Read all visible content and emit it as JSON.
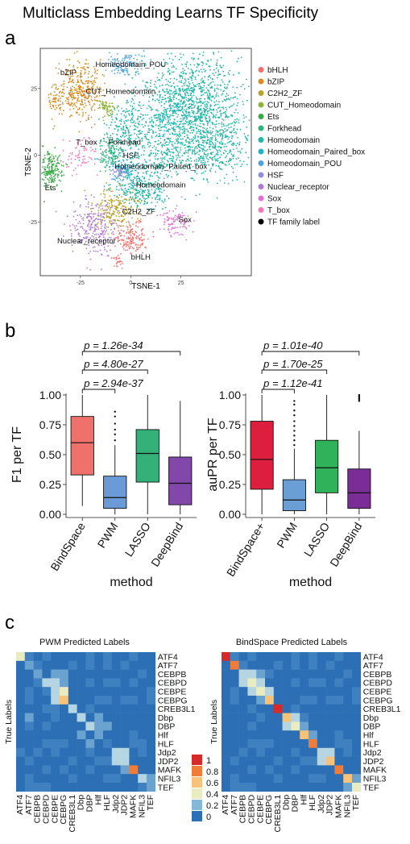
{
  "figure_title": "Multiclass Embedding Learns TF Specificity",
  "panel_letters": [
    "a",
    "b",
    "c"
  ],
  "colors": {
    "bHLH": "#f26f6b",
    "bZIP": "#d98b21",
    "C2H2_ZF": "#b8a32c",
    "CUT_Homeodomain": "#8fb43a",
    "Ets": "#3ca848",
    "Forkhead": "#2cb27a",
    "Homeodomain": "#22b6a4",
    "Homeodomain_Paired_box": "#1fb4c4",
    "Homeodomain_POU": "#4ea3dc",
    "HSF": "#8c8fd9",
    "Nuclear_receptor": "#b07ad8",
    "Sox": "#e36fd0",
    "T_box": "#f27ab8",
    "TF family label": "#000000",
    "BindSpace": "#f0716c",
    "PWM": "#6b9bd6",
    "LASSO": "#34b079",
    "DeepBind": "#8147a9",
    "BindSpace+": "#dd1f3d",
    "PWM_b": "#6a9ed4",
    "LASSO_b": "#2fb25a",
    "DeepBind_b": "#7b2d96"
  },
  "chart_data": [
    {
      "type": "scatter",
      "xlabel": "TSNE-1",
      "ylabel": "TSNE-2",
      "xticks": [
        -25,
        0,
        25
      ],
      "yticks": [
        25,
        0,
        -25
      ],
      "xlim": [
        -45,
        60
      ],
      "ylim": [
        -45,
        40
      ],
      "legend_position": "right",
      "legend": [
        "bHLH",
        "bZIP",
        "C2H2_ZF",
        "CUT_Homeodomain",
        "Ets",
        "Forkhead",
        "Homeodomain",
        "Homeodomain_Paired_box",
        "Homeodomain_POU",
        "HSF",
        "Nuclear_receptor",
        "Sox",
        "T_box",
        "TF family label"
      ],
      "clusters": [
        {
          "family": "Homeodomain",
          "x": 30,
          "y": 20,
          "sx": 13,
          "sy": 9,
          "n": 1100
        },
        {
          "family": "Homeodomain",
          "x": 40,
          "y": 3,
          "sx": 9,
          "sy": 6,
          "n": 450
        },
        {
          "family": "Homeodomain",
          "x": 0,
          "y": 10,
          "sx": 6,
          "sy": 5,
          "n": 250
        },
        {
          "family": "Homeodomain",
          "x": 6,
          "y": -14,
          "sx": 6,
          "sy": 3,
          "n": 200
        },
        {
          "family": "Homeodomain",
          "x": 15,
          "y": 0,
          "sx": 6,
          "sy": 5,
          "n": 200
        },
        {
          "family": "Homeodomain_Paired_box",
          "x": -2,
          "y": -6,
          "sx": 5,
          "sy": 4,
          "n": 200
        },
        {
          "family": "Homeodomain_Paired_box",
          "x": 20,
          "y": 14,
          "sx": 6,
          "sy": 5,
          "n": 120
        },
        {
          "family": "Homeodomain_POU",
          "x": -4,
          "y": 34,
          "sx": 4,
          "sy": 2.2,
          "n": 110
        },
        {
          "family": "bZIP",
          "x": -25,
          "y": 24,
          "sx": 5,
          "sy": 5,
          "n": 350
        },
        {
          "family": "bZIP",
          "x": -37,
          "y": 20,
          "sx": 2,
          "sy": 3,
          "n": 60
        },
        {
          "family": "CUT_Homeodomain",
          "x": -12,
          "y": 18,
          "sx": 1.8,
          "sy": 1.5,
          "n": 60
        },
        {
          "family": "Ets",
          "x": -40,
          "y": -5,
          "sx": 3.5,
          "sy": 3.5,
          "n": 200
        },
        {
          "family": "Forkhead",
          "x": -11,
          "y": 1,
          "sx": 3,
          "sy": 3,
          "n": 120
        },
        {
          "family": "T_box",
          "x": -25,
          "y": 0,
          "sx": 4,
          "sy": 3,
          "n": 70
        },
        {
          "family": "HSF",
          "x": -6,
          "y": -6,
          "sx": 2,
          "sy": 1.6,
          "n": 50
        },
        {
          "family": "C2H2_ZF",
          "x": -7,
          "y": -20,
          "sx": 6,
          "sy": 3.5,
          "n": 220
        },
        {
          "family": "Nuclear_receptor",
          "x": -18,
          "y": -27,
          "sx": 6,
          "sy": 5,
          "n": 260
        },
        {
          "family": "Sox",
          "x": 22,
          "y": -25,
          "sx": 4,
          "sy": 3,
          "n": 100
        },
        {
          "family": "bHLH",
          "x": 1,
          "y": -31,
          "sx": 4,
          "sy": 3,
          "n": 150
        },
        {
          "family": "bHLH",
          "x": -6,
          "y": -40,
          "sx": 1.5,
          "sy": 1.2,
          "n": 25
        }
      ],
      "labels": [
        {
          "text": "Homeodomain_POU",
          "x": 0,
          "y": 33
        },
        {
          "text": "bZIP",
          "x": -31,
          "y": 30
        },
        {
          "text": "CUT_Homeodomain",
          "x": -5,
          "y": 23
        },
        {
          "text": "T_box",
          "x": -22,
          "y": 4
        },
        {
          "text": "Forkhead",
          "x": -3,
          "y": 4
        },
        {
          "text": "HSF",
          "x": 0,
          "y": -1
        },
        {
          "text": "Homeodomain_Paired_box",
          "x": 15,
          "y": -5
        },
        {
          "text": "Homeodomain",
          "x": 15,
          "y": -12
        },
        {
          "text": "Ets",
          "x": -40,
          "y": -13
        },
        {
          "text": "C2H2_ZF",
          "x": 4,
          "y": -22
        },
        {
          "text": "Sox",
          "x": 27,
          "y": -25
        },
        {
          "text": "Nuclear_receptor",
          "x": -22,
          "y": -33
        },
        {
          "text": "bHLH",
          "x": 5,
          "y": -39
        }
      ]
    },
    {
      "type": "box",
      "xlabel": "method",
      "ylabel": "F1 per TF",
      "ylim": [
        0,
        1
      ],
      "yticks": [
        "0.00",
        "0.25",
        "0.50",
        "0.75",
        "1.00"
      ],
      "categories": [
        "BindSpace",
        "PWM",
        "LASSO",
        "DeepBind"
      ],
      "boxes": [
        {
          "q1": 0.33,
          "median": 0.6,
          "q3": 0.82,
          "lo": 0.07,
          "hi": 1.0,
          "outliers": []
        },
        {
          "q1": 0.05,
          "median": 0.14,
          "q3": 0.32,
          "lo": 0.0,
          "hi": 0.58,
          "outliers": [
            0.62,
            0.67,
            0.71,
            0.76,
            0.82,
            0.86
          ]
        },
        {
          "q1": 0.27,
          "median": 0.51,
          "q3": 0.71,
          "lo": 0.0,
          "hi": 1.0,
          "outliers": []
        },
        {
          "q1": 0.08,
          "median": 0.26,
          "q3": 0.48,
          "lo": 0.0,
          "hi": 0.95,
          "outliers": []
        }
      ],
      "comparisons": [
        "p = 1.26e-34",
        "p = 4.80e-27",
        "p = 2.94e-37"
      ],
      "comparison_targets": [
        3,
        2,
        1
      ]
    },
    {
      "type": "box",
      "xlabel": "method",
      "ylabel": "auPR per TF",
      "ylim": [
        0,
        1
      ],
      "yticks": [
        "0.00",
        "0.25",
        "0.50",
        "0.75",
        "1.00"
      ],
      "categories": [
        "BindSpace+",
        "PWM",
        "LASSO",
        "DeepBind"
      ],
      "boxes": [
        {
          "q1": 0.21,
          "median": 0.46,
          "q3": 0.78,
          "lo": 0.0,
          "hi": 1.0,
          "outliers": []
        },
        {
          "q1": 0.03,
          "median": 0.12,
          "q3": 0.29,
          "lo": 0.0,
          "hi": 0.55,
          "outliers": [
            0.58,
            0.62,
            0.66,
            0.7,
            0.74,
            0.78,
            0.83,
            0.87,
            0.92,
            0.95
          ]
        },
        {
          "q1": 0.18,
          "median": 0.39,
          "q3": 0.62,
          "lo": 0.0,
          "hi": 1.0,
          "outliers": []
        },
        {
          "q1": 0.05,
          "median": 0.18,
          "q3": 0.38,
          "lo": 0.0,
          "hi": 0.7,
          "outliers": [
            0.95,
            0.96,
            0.97,
            0.98,
            0.99,
            1.0
          ]
        }
      ],
      "comparisons": [
        "p = 1.01e-40",
        "p = 1.70e-25",
        "p = 1.12e-41"
      ],
      "comparison_targets": [
        3,
        2,
        1
      ]
    },
    {
      "type": "heatmap",
      "title": "PWM Predicted Labels",
      "ylabel": "True Labels",
      "rows": [
        "ATF4",
        "ATF7",
        "CEBPB",
        "CEBPD",
        "CEBPE",
        "CEBPG",
        "CREB3L1",
        "Dbp",
        "DBP",
        "Hlf",
        "HLF",
        "Jdp2",
        "JDP2",
        "MAFK",
        "NFIL3",
        "TEF"
      ],
      "cols": [
        "ATF4",
        "ATF7",
        "CEBPB",
        "CEBPD",
        "CEBPE",
        "CEBPG",
        "CREB3L1",
        "Dbp",
        "DBP",
        "Hlf",
        "HLF",
        "Jdp2",
        "JDP2",
        "MAFK",
        "NFIL3",
        "TEF"
      ],
      "diag": [
        0.45,
        0.2,
        0.25,
        0.3,
        0.35,
        0.5,
        0.3,
        0.3,
        0.35,
        0.2,
        0.15,
        0.3,
        0.35,
        0.7,
        0.35,
        0.2
      ],
      "offdiag": [
        [
          2,
          4,
          0.25
        ],
        [
          3,
          4,
          0.3
        ],
        [
          3,
          5,
          0.25
        ],
        [
          4,
          5,
          0.4
        ],
        [
          5,
          4,
          0.3
        ],
        [
          2,
          5,
          0.2
        ],
        [
          7,
          9,
          0.2
        ],
        [
          8,
          9,
          0.25
        ],
        [
          8,
          10,
          0.2
        ],
        [
          9,
          7,
          0.2
        ],
        [
          10,
          8,
          0.25
        ],
        [
          11,
          12,
          0.35
        ],
        [
          12,
          11,
          0.3
        ],
        [
          14,
          15,
          0.2
        ],
        [
          15,
          14,
          0.15
        ],
        [
          7,
          1,
          0.18
        ],
        [
          8,
          1,
          0.15
        ],
        [
          11,
          0,
          0.15
        ],
        [
          13,
          12,
          0.18
        ],
        [
          6,
          4,
          0.15
        ]
      ]
    },
    {
      "type": "heatmap",
      "title": "BindSpace Predicted Labels",
      "ylabel": "True Labels",
      "rows": [
        "ATF4",
        "ATF7",
        "CEBPB",
        "CEBPD",
        "CEBPE",
        "CEBPG",
        "CREB3L1",
        "Dbp",
        "DBP",
        "Hlf",
        "HLF",
        "Jdp2",
        "JDP2",
        "MAFK",
        "NFIL3",
        "TEF"
      ],
      "cols": [
        "ATF4",
        "ATF7",
        "CEBPB",
        "CEBPD",
        "CEBPE",
        "CEBPG",
        "CREB3L1",
        "Dbp",
        "DBP",
        "Hlf",
        "HLF",
        "Jdp2",
        "JDP2",
        "MAFK",
        "NFIL3",
        "TEF"
      ],
      "diag": [
        0.95,
        0.85,
        0.35,
        0.45,
        0.4,
        0.55,
        0.95,
        0.5,
        0.45,
        0.6,
        0.85,
        0.35,
        0.5,
        0.75,
        0.5,
        0.4
      ],
      "offdiag": [
        [
          2,
          3,
          0.3
        ],
        [
          3,
          2,
          0.3
        ],
        [
          2,
          4,
          0.25
        ],
        [
          3,
          4,
          0.3
        ],
        [
          4,
          3,
          0.3
        ],
        [
          4,
          5,
          0.3
        ],
        [
          5,
          4,
          0.25
        ],
        [
          7,
          8,
          0.3
        ],
        [
          8,
          7,
          0.3
        ],
        [
          9,
          10,
          0.25
        ],
        [
          11,
          12,
          0.35
        ],
        [
          12,
          11,
          0.35
        ],
        [
          14,
          15,
          0.25
        ],
        [
          15,
          14,
          0.2
        ],
        [
          8,
          9,
          0.18
        ]
      ]
    }
  ],
  "colorbar": {
    "ticks": [
      "1",
      "0.8",
      "0.6",
      "0.4",
      "0.2",
      "0"
    ],
    "colors": [
      "#d62a2a",
      "#f07c3a",
      "#f7c37a",
      "#e9ecc0",
      "#85b7d6",
      "#2c6fb5"
    ]
  }
}
